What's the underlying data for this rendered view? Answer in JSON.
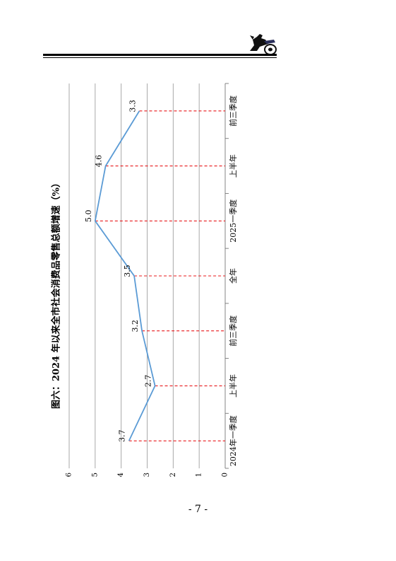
{
  "header": {
    "logo_icon": "horse-chariot-logo-icon"
  },
  "chart_data": {
    "type": "line",
    "title": "图六：2024 年以来全市社会消费品零售总额增速（%）",
    "categories": [
      "2024年一季度",
      "上半年",
      "前三季度",
      "全年",
      "2025一季度",
      "上半年",
      "前三季度"
    ],
    "values": [
      3.7,
      2.7,
      3.2,
      3.5,
      5.0,
      4.6,
      3.3
    ],
    "data_labels": [
      "3.7",
      "2.7",
      "3.2",
      "3.5",
      "5.0",
      "4.6",
      "3.3"
    ],
    "y_ticks": [
      "0",
      "1",
      "2",
      "3",
      "4",
      "5",
      "6"
    ],
    "ylim": [
      0,
      6
    ],
    "grid": true,
    "orientation": "rotated 90° counter-clockwise",
    "line_color": "#5b9bd5",
    "drop_line_color": "#e8181b",
    "grid_color": "#a0a0a0"
  },
  "footer": {
    "page_number": "- 7 -"
  }
}
